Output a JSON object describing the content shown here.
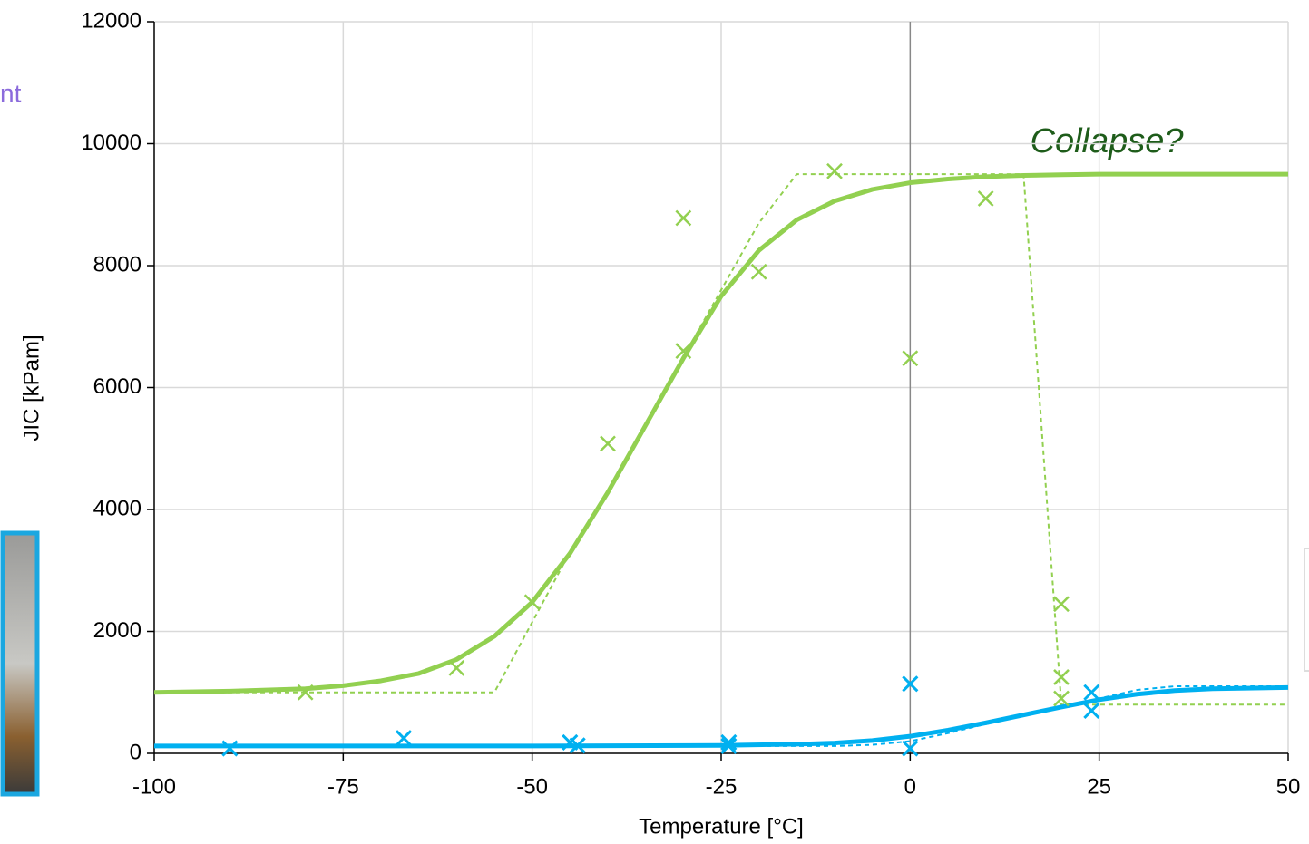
{
  "fragment_text": "nt",
  "chart_data": {
    "type": "scatter-line",
    "x_label": "Temperature [°C]",
    "y_label": "JIC [kPam]",
    "annotation": "Collapse?",
    "xlim": [
      -100,
      50
    ],
    "xticks": [
      -100,
      -75,
      -50,
      -25,
      0,
      25,
      50
    ],
    "ylim": [
      0,
      12000
    ],
    "yticks": [
      0,
      2000,
      4000,
      6000,
      8000,
      10000,
      12000
    ],
    "grid": true,
    "series": [
      {
        "color": "#92d050",
        "style": "markers",
        "x": [
          -80,
          -60,
          -50,
          -40,
          -30,
          -30,
          -20,
          -10,
          0,
          10,
          20,
          20,
          20
        ],
        "values": [
          1000,
          1400,
          2480,
          5080,
          8780,
          6600,
          7900,
          9550,
          6480,
          9100,
          2450,
          1250,
          900
        ]
      },
      {
        "color": "#92d050",
        "style": "solid",
        "x": [
          -100,
          -90,
          -80,
          -75,
          -70,
          -65,
          -60,
          -55,
          -50,
          -45,
          -40,
          -35,
          -30,
          -25,
          -20,
          -15,
          -10,
          -5,
          0,
          5,
          10,
          15,
          20,
          25,
          50
        ],
        "values": [
          1000,
          1020,
          1060,
          1110,
          1190,
          1310,
          1540,
          1920,
          2480,
          3280,
          4280,
          5380,
          6480,
          7500,
          8250,
          8750,
          9060,
          9250,
          9360,
          9420,
          9460,
          9480,
          9490,
          9500,
          9500
        ]
      },
      {
        "color": "#92d050",
        "style": "dashed",
        "x": [
          -100,
          -55,
          -50,
          -45,
          -40,
          -35,
          -30,
          -25,
          -20,
          -15,
          15,
          20,
          50
        ],
        "values": [
          1000,
          1000,
          2150,
          3300,
          4300,
          5350,
          6500,
          7600,
          8700,
          9500,
          9500,
          800,
          800
        ]
      },
      {
        "color": "#00b0f0",
        "style": "markers",
        "x": [
          -90,
          -67,
          -45,
          -44,
          -24,
          -24,
          0,
          0,
          24,
          24
        ],
        "values": [
          80,
          250,
          180,
          130,
          180,
          120,
          1140,
          80,
          1000,
          700
        ]
      },
      {
        "color": "#00b0f0",
        "style": "solid",
        "x": [
          -100,
          -50,
          -25,
          -15,
          -10,
          -5,
          0,
          5,
          10,
          15,
          20,
          25,
          30,
          35,
          40,
          50
        ],
        "values": [
          120,
          120,
          130,
          150,
          170,
          210,
          280,
          380,
          500,
          630,
          760,
          880,
          970,
          1030,
          1060,
          1080
        ]
      },
      {
        "color": "#00b0f0",
        "style": "dashed",
        "x": [
          -100,
          -25,
          -10,
          -5,
          0,
          5,
          10,
          20,
          25,
          30,
          35,
          50
        ],
        "values": [
          120,
          120,
          120,
          140,
          200,
          330,
          480,
          760,
          900,
          1040,
          1100,
          1100
        ]
      }
    ]
  }
}
